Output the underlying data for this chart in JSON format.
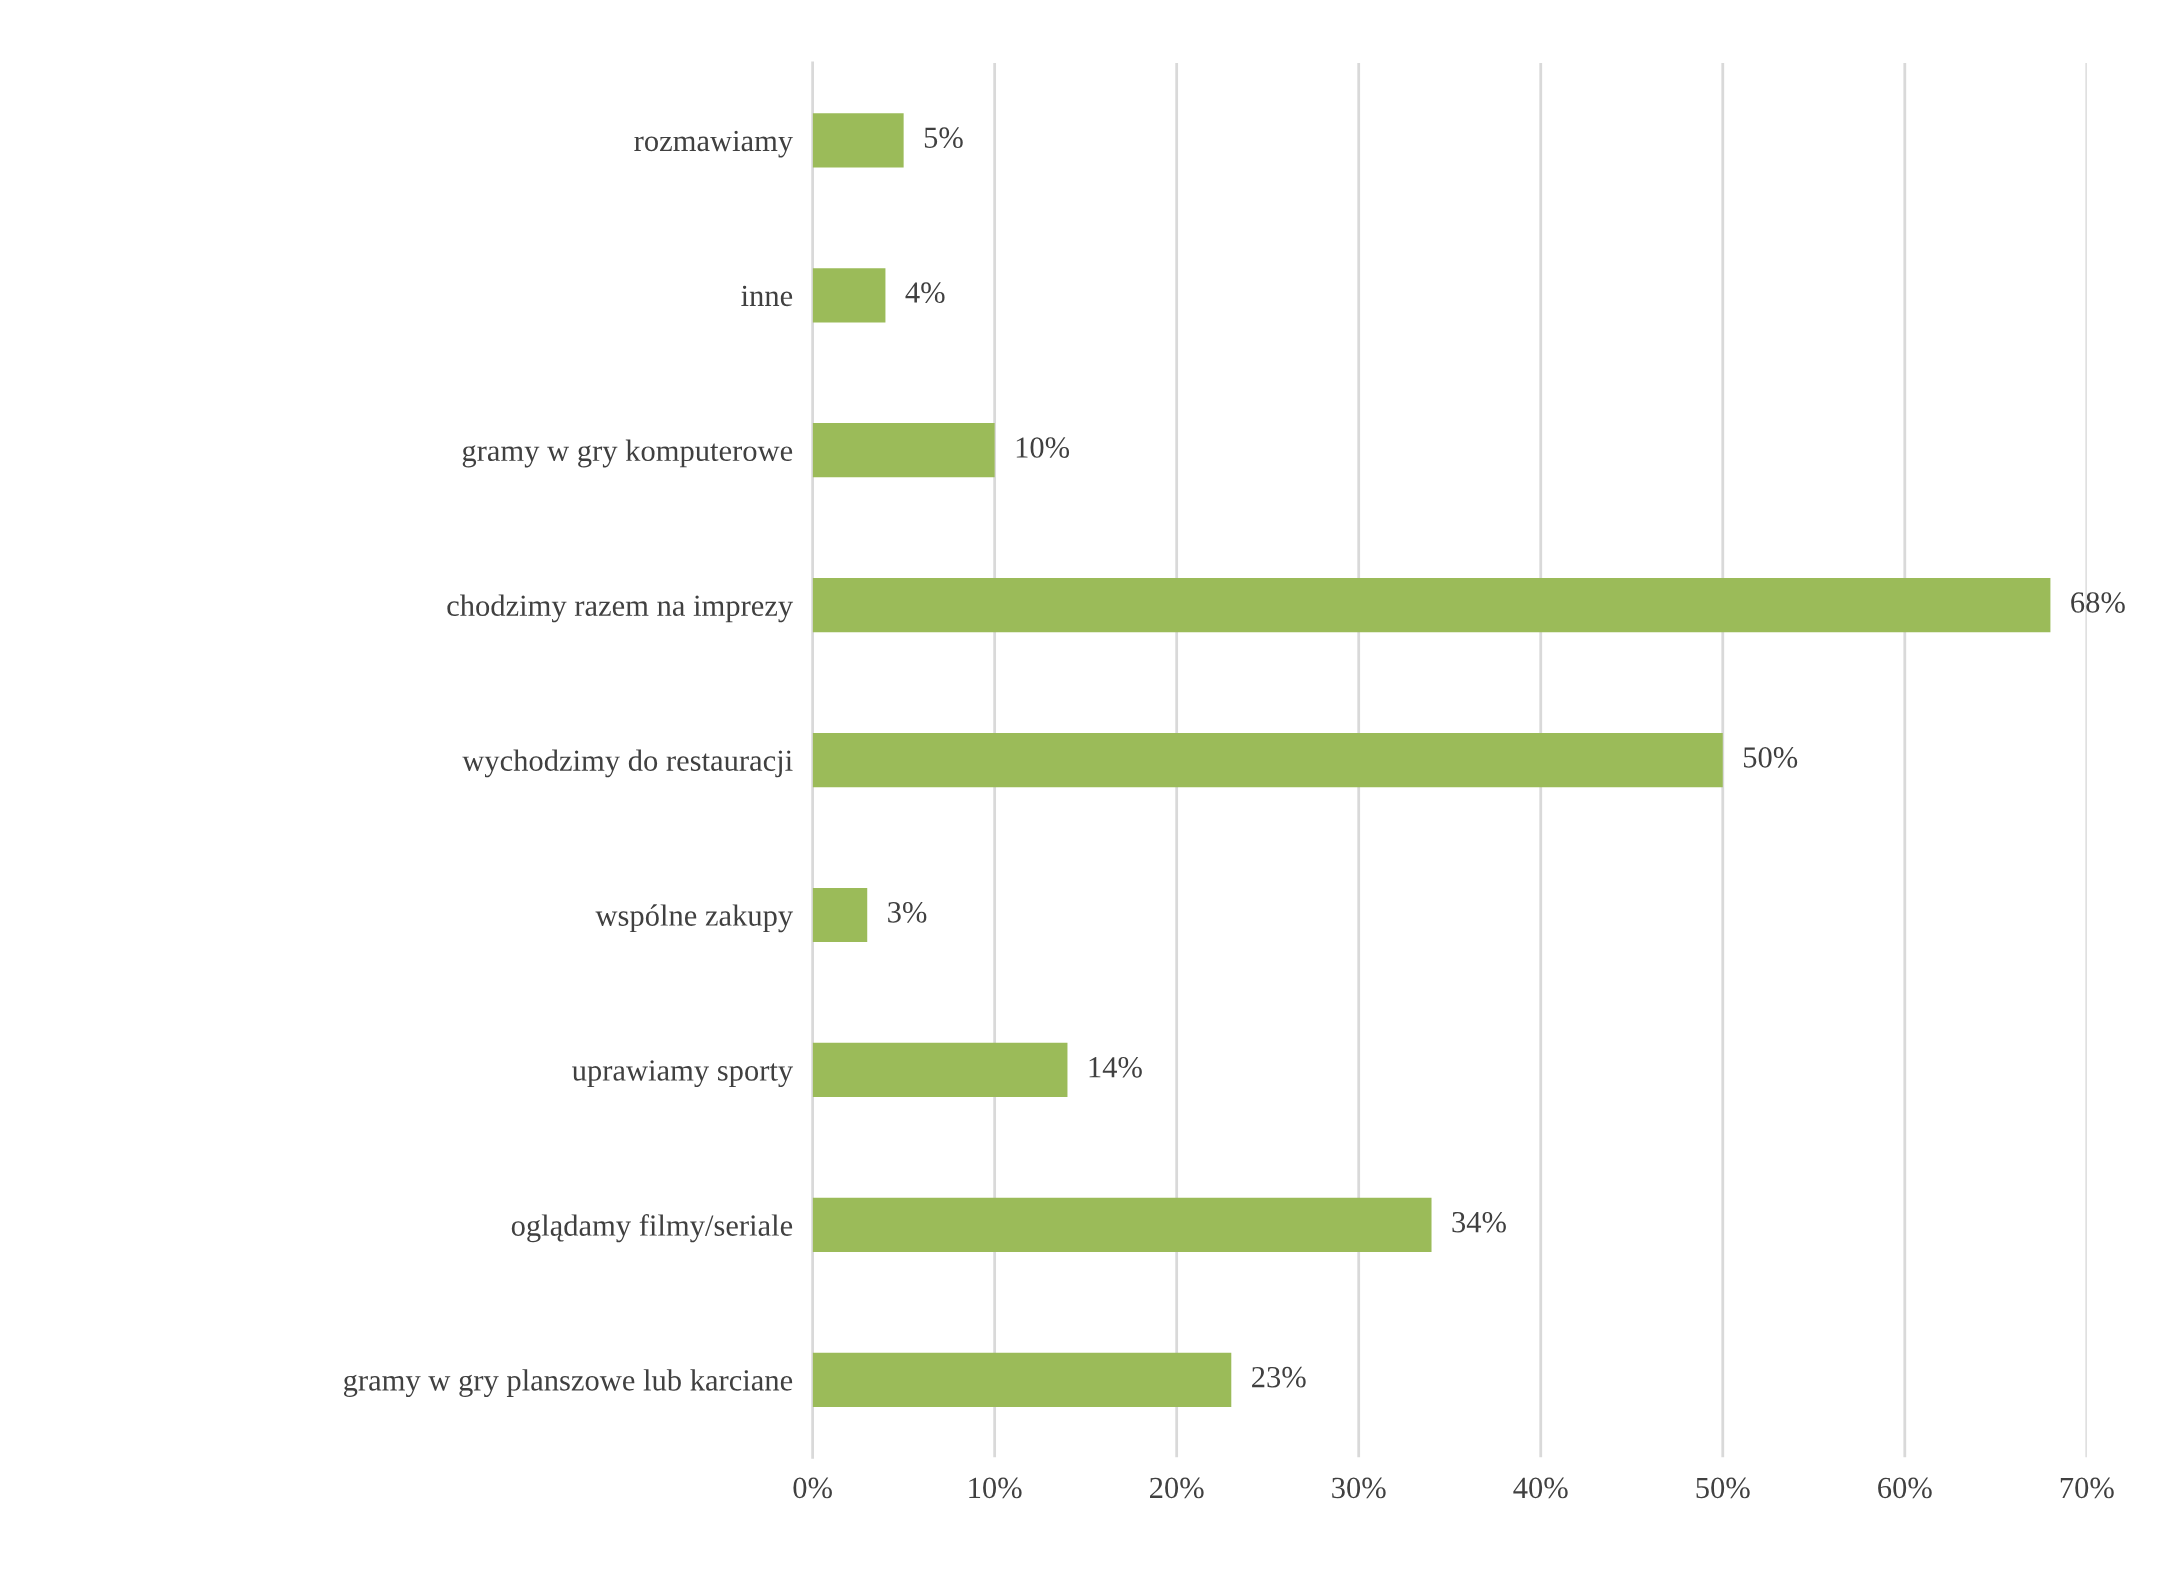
{
  "chart_data": {
    "type": "bar",
    "orientation": "horizontal",
    "categories": [
      "rozmawiamy",
      "inne",
      "gramy w gry komputerowe",
      "chodzimy razem na imprezy",
      "wychodzimy do restauracji",
      "wspólne zakupy",
      "uprawiamy sporty",
      "oglądamy filmy/seriale",
      "gramy w gry planszowe lub karciane"
    ],
    "values": [
      5,
      4,
      10,
      68,
      50,
      3,
      14,
      34,
      23
    ],
    "value_labels": [
      "5%",
      "4%",
      "10%",
      "68%",
      "50%",
      "3%",
      "14%",
      "34%",
      "23%"
    ],
    "color": "#9bbb59",
    "xlim": [
      0,
      70
    ],
    "xticks": [
      {
        "value": 0,
        "label": "0%"
      },
      {
        "value": 10,
        "label": "10%"
      },
      {
        "value": 20,
        "label": "20%"
      },
      {
        "value": 30,
        "label": "30%"
      },
      {
        "value": 40,
        "label": "40%"
      },
      {
        "value": 50,
        "label": "50%"
      },
      {
        "value": 60,
        "label": "60%"
      },
      {
        "value": 70,
        "label": "70%"
      }
    ],
    "grid": "x",
    "legend": false
  }
}
